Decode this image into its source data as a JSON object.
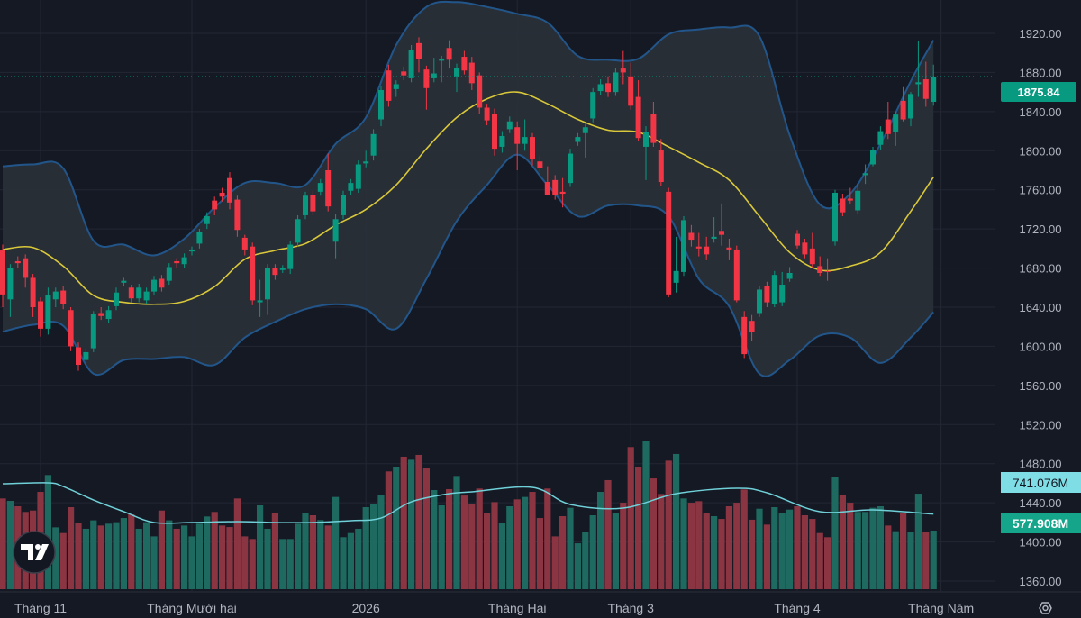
{
  "chart_data": {
    "type": "candlestick",
    "title": "",
    "price_axis": {
      "ticks": [
        "1920.00",
        "1880.00",
        "1840.00",
        "1800.00",
        "1760.00",
        "1720.00",
        "1680.00",
        "1640.00",
        "1600.00",
        "1560.00",
        "1520.00",
        "1480.00",
        "1440.00",
        "1400.00",
        "1360.00"
      ],
      "ylim": [
        1350,
        1935
      ]
    },
    "time_axis": {
      "labels": [
        {
          "text": "Tháng 11",
          "index": 5
        },
        {
          "text": "Tháng Mười hai",
          "index": 25
        },
        {
          "text": "2026",
          "index": 48
        },
        {
          "text": "Tháng Hai",
          "index": 68
        },
        {
          "text": "Tháng 3",
          "index": 83
        },
        {
          "text": "Tháng 4",
          "index": 105
        },
        {
          "text": "Tháng Năm",
          "index": 124
        }
      ]
    },
    "grid": true,
    "last_price": "1875.84",
    "volume_ma_label": "741.076M",
    "last_volume_label": "577.908M",
    "colors": {
      "up": "#089981",
      "down": "#f23645",
      "volume_up": "#1e6a60",
      "volume_down": "#8b3442",
      "bb_line": "#22568a",
      "bb_fill": "#2a3139",
      "basis": "#d9c839",
      "volume_ma": "#6fd0d8",
      "background": "#151924"
    },
    "candles_ohlc": [
      [
        1698,
        1704,
        1640,
        1653
      ],
      [
        1648,
        1684,
        1630,
        1680
      ],
      [
        1687,
        1692,
        1680,
        1685
      ],
      [
        1690,
        1694,
        1660,
        1670
      ],
      [
        1670,
        1674,
        1630,
        1640
      ],
      [
        1646,
        1650,
        1610,
        1618
      ],
      [
        1618,
        1660,
        1612,
        1652
      ],
      [
        1648,
        1660,
        1640,
        1656
      ],
      [
        1657,
        1662,
        1638,
        1643
      ],
      [
        1637,
        1640,
        1595,
        1600
      ],
      [
        1599,
        1604,
        1575,
        1581
      ],
      [
        1586,
        1598,
        1580,
        1594
      ],
      [
        1598,
        1636,
        1594,
        1633
      ],
      [
        1634,
        1640,
        1627,
        1631
      ],
      [
        1628,
        1641,
        1624,
        1637
      ],
      [
        1641,
        1660,
        1637,
        1655
      ],
      [
        1665,
        1670,
        1662,
        1667
      ],
      [
        1660,
        1663,
        1645,
        1649
      ],
      [
        1649,
        1664,
        1645,
        1660
      ],
      [
        1647,
        1660,
        1643,
        1656
      ],
      [
        1656,
        1672,
        1652,
        1668
      ],
      [
        1669,
        1673,
        1656,
        1660
      ],
      [
        1667,
        1685,
        1663,
        1681
      ],
      [
        1687,
        1690,
        1680,
        1685
      ],
      [
        1684,
        1695,
        1680,
        1691
      ],
      [
        1697,
        1702,
        1693,
        1699
      ],
      [
        1705,
        1720,
        1700,
        1717
      ],
      [
        1725,
        1737,
        1720,
        1733
      ],
      [
        1749,
        1753,
        1734,
        1740
      ],
      [
        1757,
        1762,
        1748,
        1753
      ],
      [
        1772,
        1778,
        1740,
        1747
      ],
      [
        1750,
        1754,
        1712,
        1719
      ],
      [
        1711,
        1714,
        1693,
        1699
      ],
      [
        1702,
        1706,
        1642,
        1647
      ],
      [
        1645,
        1668,
        1630,
        1647
      ],
      [
        1648,
        1684,
        1632,
        1680
      ],
      [
        1680,
        1684,
        1668,
        1673
      ],
      [
        1678,
        1683,
        1675,
        1680
      ],
      [
        1679,
        1708,
        1674,
        1704
      ],
      [
        1706,
        1734,
        1702,
        1730
      ],
      [
        1734,
        1758,
        1730,
        1754
      ],
      [
        1755,
        1759,
        1734,
        1738
      ],
      [
        1758,
        1771,
        1754,
        1767
      ],
      [
        1780,
        1797,
        1738,
        1743
      ],
      [
        1707,
        1735,
        1690,
        1730
      ],
      [
        1734,
        1759,
        1730,
        1755
      ],
      [
        1759,
        1771,
        1755,
        1767
      ],
      [
        1761,
        1790,
        1757,
        1786
      ],
      [
        1787,
        1800,
        1783,
        1789
      ],
      [
        1795,
        1822,
        1790,
        1817
      ],
      [
        1832,
        1866,
        1825,
        1862
      ],
      [
        1882,
        1888,
        1845,
        1851
      ],
      [
        1863,
        1872,
        1855,
        1868
      ],
      [
        1881,
        1886,
        1872,
        1877
      ],
      [
        1874,
        1908,
        1870,
        1903
      ],
      [
        1910,
        1916,
        1880,
        1894
      ],
      [
        1883,
        1887,
        1842,
        1864
      ],
      [
        1874,
        1895,
        1870,
        1879
      ],
      [
        1892,
        1897,
        1870,
        1894
      ],
      [
        1905,
        1913,
        1884,
        1893
      ],
      [
        1876,
        1889,
        1860,
        1885
      ],
      [
        1896,
        1902,
        1878,
        1882
      ],
      [
        1890,
        1896,
        1862,
        1869
      ],
      [
        1877,
        1880,
        1838,
        1844
      ],
      [
        1844,
        1848,
        1826,
        1831
      ],
      [
        1838,
        1843,
        1795,
        1802
      ],
      [
        1804,
        1820,
        1798,
        1815
      ],
      [
        1822,
        1835,
        1818,
        1830
      ],
      [
        1824,
        1830,
        1780,
        1807
      ],
      [
        1807,
        1832,
        1800,
        1814
      ],
      [
        1814,
        1818,
        1785,
        1791
      ],
      [
        1789,
        1795,
        1778,
        1782
      ],
      [
        1768,
        1784,
        1762,
        1755
      ],
      [
        1770,
        1775,
        1750,
        1755
      ],
      [
        1758,
        1772,
        1742,
        1756
      ],
      [
        1767,
        1802,
        1763,
        1797
      ],
      [
        1809,
        1818,
        1805,
        1814
      ],
      [
        1818,
        1828,
        1793,
        1824
      ],
      [
        1833,
        1864,
        1829,
        1860
      ],
      [
        1861,
        1873,
        1857,
        1868
      ],
      [
        1869,
        1876,
        1855,
        1860
      ],
      [
        1860,
        1884,
        1856,
        1880
      ],
      [
        1884,
        1902,
        1868,
        1880
      ],
      [
        1876,
        1890,
        1842,
        1846
      ],
      [
        1855,
        1872,
        1810,
        1813
      ],
      [
        1804,
        1825,
        1770,
        1819
      ],
      [
        1838,
        1850,
        1804,
        1808
      ],
      [
        1801,
        1812,
        1764,
        1768
      ],
      [
        1758,
        1762,
        1650,
        1653
      ],
      [
        1665,
        1712,
        1655,
        1677
      ],
      [
        1676,
        1733,
        1672,
        1729
      ],
      [
        1716,
        1724,
        1702,
        1709
      ],
      [
        1702,
        1716,
        1692,
        1700
      ],
      [
        1702,
        1712,
        1688,
        1694
      ],
      [
        1710,
        1732,
        1706,
        1712
      ],
      [
        1718,
        1746,
        1703,
        1714
      ],
      [
        1701,
        1710,
        1688,
        1699
      ],
      [
        1699,
        1703,
        1645,
        1647
      ],
      [
        1630,
        1636,
        1588,
        1592
      ],
      [
        1626,
        1632,
        1605,
        1615
      ],
      [
        1634,
        1662,
        1630,
        1658
      ],
      [
        1662,
        1666,
        1640,
        1645
      ],
      [
        1643,
        1677,
        1640,
        1673
      ],
      [
        1645,
        1676,
        1641,
        1663
      ],
      [
        1669,
        1681,
        1666,
        1675
      ],
      [
        1715,
        1719,
        1700,
        1703
      ],
      [
        1706,
        1710,
        1690,
        1694
      ],
      [
        1700,
        1716,
        1680,
        1684
      ],
      [
        1682,
        1692,
        1672,
        1675
      ],
      [
        1677,
        1690,
        1667,
        1676
      ],
      [
        1707,
        1760,
        1703,
        1757
      ],
      [
        1751,
        1756,
        1733,
        1737
      ],
      [
        1751,
        1762,
        1746,
        1749
      ],
      [
        1739,
        1767,
        1735,
        1759
      ],
      [
        1775,
        1786,
        1766,
        1777
      ],
      [
        1786,
        1804,
        1784,
        1801
      ],
      [
        1806,
        1825,
        1801,
        1820
      ],
      [
        1832,
        1850,
        1812,
        1817
      ],
      [
        1819,
        1840,
        1805,
        1837
      ],
      [
        1851,
        1865,
        1830,
        1832
      ],
      [
        1833,
        1860,
        1825,
        1858
      ],
      [
        1868,
        1912,
        1855,
        1870
      ],
      [
        1873,
        1891,
        1845,
        1853
      ],
      [
        1850,
        1888,
        1846,
        1875.84
      ]
    ],
    "volumes_millions": [
      895,
      871,
      818,
      762,
      776,
      960,
      1126,
      610,
      554,
      809,
      655,
      596,
      679,
      628,
      646,
      661,
      702,
      738,
      596,
      661,
      521,
      776,
      679,
      596,
      628,
      521,
      646,
      717,
      762,
      628,
      613,
      895,
      521,
      495,
      827,
      596,
      747,
      495,
      495,
      646,
      753,
      729,
      682,
      628,
      910,
      513,
      554,
      596,
      809,
      836,
      927,
      1162,
      1209,
      1307,
      1277,
      1325,
      1191,
      978,
      827,
      987,
      1117,
      924,
      836,
      993,
      753,
      859,
      655,
      818,
      886,
      910,
      960,
      702,
      993,
      521,
      720,
      803,
      453,
      569,
      729,
      960,
      1076,
      753,
      853,
      1402,
      1209,
      1458,
      1093,
      939,
      1268,
      1334,
      895,
      853,
      868,
      747,
      720,
      693,
      818,
      853,
      984,
      685,
      794,
      637,
      809,
      747,
      785,
      818,
      729,
      693,
      554,
      513,
      1108,
      933,
      853,
      762,
      762,
      803,
      818,
      628,
      572,
      747,
      560,
      942,
      569,
      577.908
    ],
    "bollinger_sample_index": [
      0,
      4,
      8,
      12,
      16,
      20,
      24,
      28,
      32,
      36,
      40,
      44,
      48,
      52,
      56,
      60,
      64,
      68,
      72,
      76,
      80,
      84,
      88,
      92,
      96,
      100,
      104,
      108,
      112,
      116,
      120,
      123
    ],
    "bollinger_upper": [
      1784,
      1786,
      1782,
      1708,
      1704,
      1693,
      1710,
      1742,
      1767,
      1767,
      1765,
      1807,
      1834,
      1908,
      1947,
      1952,
      1947,
      1940,
      1931,
      1897,
      1893,
      1894,
      1919,
      1924,
      1926,
      1917,
      1816,
      1745,
      1756,
      1807,
      1871,
      1913
    ],
    "bollinger_basis": [
      1699,
      1701,
      1682,
      1652,
      1645,
      1643,
      1646,
      1661,
      1689,
      1698,
      1705,
      1724,
      1740,
      1765,
      1802,
      1834,
      1853,
      1860,
      1848,
      1832,
      1821,
      1819,
      1804,
      1788,
      1770,
      1733,
      1696,
      1678,
      1682,
      1696,
      1738,
      1773
    ],
    "bollinger_lower": [
      1615,
      1622,
      1621,
      1572,
      1586,
      1587,
      1589,
      1581,
      1609,
      1625,
      1638,
      1643,
      1638,
      1618,
      1669,
      1728,
      1765,
      1796,
      1765,
      1733,
      1744,
      1744,
      1733,
      1669,
      1641,
      1572,
      1586,
      1611,
      1609,
      1583,
      1609,
      1635
    ],
    "volume_ma_index": [
      0,
      6,
      8,
      12,
      16,
      20,
      25,
      31,
      36,
      41,
      46,
      50,
      54,
      59,
      62,
      70,
      75,
      82,
      89,
      97,
      101,
      108,
      115,
      123
    ],
    "volume_ma_millions": [
      1040,
      1049,
      1013,
      880,
      765,
      658,
      658,
      667,
      658,
      658,
      676,
      702,
      862,
      942,
      960,
      1005,
      836,
      800,
      942,
      996,
      951,
      765,
      782,
      741.076
    ]
  },
  "icons": {
    "logo": "tradingview-logo",
    "settings": "settings-hexagon-icon"
  }
}
